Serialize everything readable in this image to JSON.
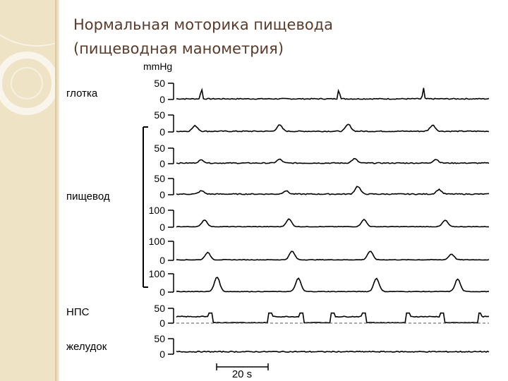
{
  "slide": {
    "title_line1": "Нормальная моторика пищевода",
    "title_line2": "(пищеводная манометрия)"
  },
  "labels": {
    "unit": "mmHg",
    "pharynx": "глотка",
    "esophagus": "пищевод",
    "les": "НПС",
    "stomach": "желудок",
    "scale_bar": "20 s"
  },
  "chart_data": {
    "type": "line",
    "title": "",
    "xlabel": "",
    "ylabel": "mmHg",
    "time_scale_bar": "20 s",
    "channels": [
      {
        "group": "глотка",
        "ymax_label": "50",
        "ymin_label": "0",
        "baseline": 2,
        "peaks": [
          {
            "t": 0.08,
            "a": 40
          },
          {
            "t": 0.52,
            "a": 38
          },
          {
            "t": 0.79,
            "a": 36
          }
        ]
      },
      {
        "group": "пищевод",
        "ymax_label": "50",
        "ymin_label": "0",
        "baseline": 2,
        "peaks": [
          {
            "t": 0.06,
            "a": 16
          },
          {
            "t": 0.33,
            "a": 18
          },
          {
            "t": 0.55,
            "a": 20
          },
          {
            "t": 0.82,
            "a": 18
          }
        ]
      },
      {
        "group": "пищевод",
        "ymax_label": "50",
        "ymin_label": "0",
        "baseline": 2,
        "peaks": [
          {
            "t": 0.08,
            "a": 10
          },
          {
            "t": 0.33,
            "a": 12
          },
          {
            "t": 0.57,
            "a": 14
          },
          {
            "t": 0.83,
            "a": 12
          }
        ]
      },
      {
        "group": "пищевод",
        "ymax_label": "50",
        "ymin_label": "0",
        "baseline": 2,
        "peaks": [
          {
            "t": 0.08,
            "a": 10
          },
          {
            "t": 0.35,
            "a": 10
          },
          {
            "t": 0.58,
            "a": 24
          },
          {
            "t": 0.84,
            "a": 14
          }
        ]
      },
      {
        "group": "пищевод",
        "ymax_label": "100",
        "ymin_label": "0",
        "baseline": 3,
        "peaks": [
          {
            "t": 0.09,
            "a": 40
          },
          {
            "t": 0.36,
            "a": 45
          },
          {
            "t": 0.6,
            "a": 42
          },
          {
            "t": 0.86,
            "a": 38
          }
        ]
      },
      {
        "group": "пищевод",
        "ymax_label": "100",
        "ymin_label": "0",
        "baseline": 3,
        "peaks": [
          {
            "t": 0.1,
            "a": 38
          },
          {
            "t": 0.37,
            "a": 45
          },
          {
            "t": 0.62,
            "a": 45
          },
          {
            "t": 0.88,
            "a": 30
          }
        ]
      },
      {
        "group": "пищевод",
        "ymax_label": "100",
        "ymin_label": "0",
        "baseline": 3,
        "peaks": [
          {
            "t": 0.13,
            "a": 80
          },
          {
            "t": 0.39,
            "a": 72
          },
          {
            "t": 0.64,
            "a": 72
          },
          {
            "t": 0.9,
            "a": 68
          }
        ]
      },
      {
        "group": "НПС",
        "ymax_label": "50",
        "ymin_label": "0",
        "baseline": 22,
        "relaxations": [
          {
            "t0": 0.11,
            "t1": 0.3
          },
          {
            "t0": 0.4,
            "t1": 0.5
          },
          {
            "t0": 0.6,
            "t1": 0.74
          },
          {
            "t0": 0.85,
            "t1": 0.97
          }
        ]
      },
      {
        "group": "желудок",
        "ymax_label": "50",
        "ymin_label": "0",
        "baseline": 8,
        "peaks": []
      }
    ]
  }
}
